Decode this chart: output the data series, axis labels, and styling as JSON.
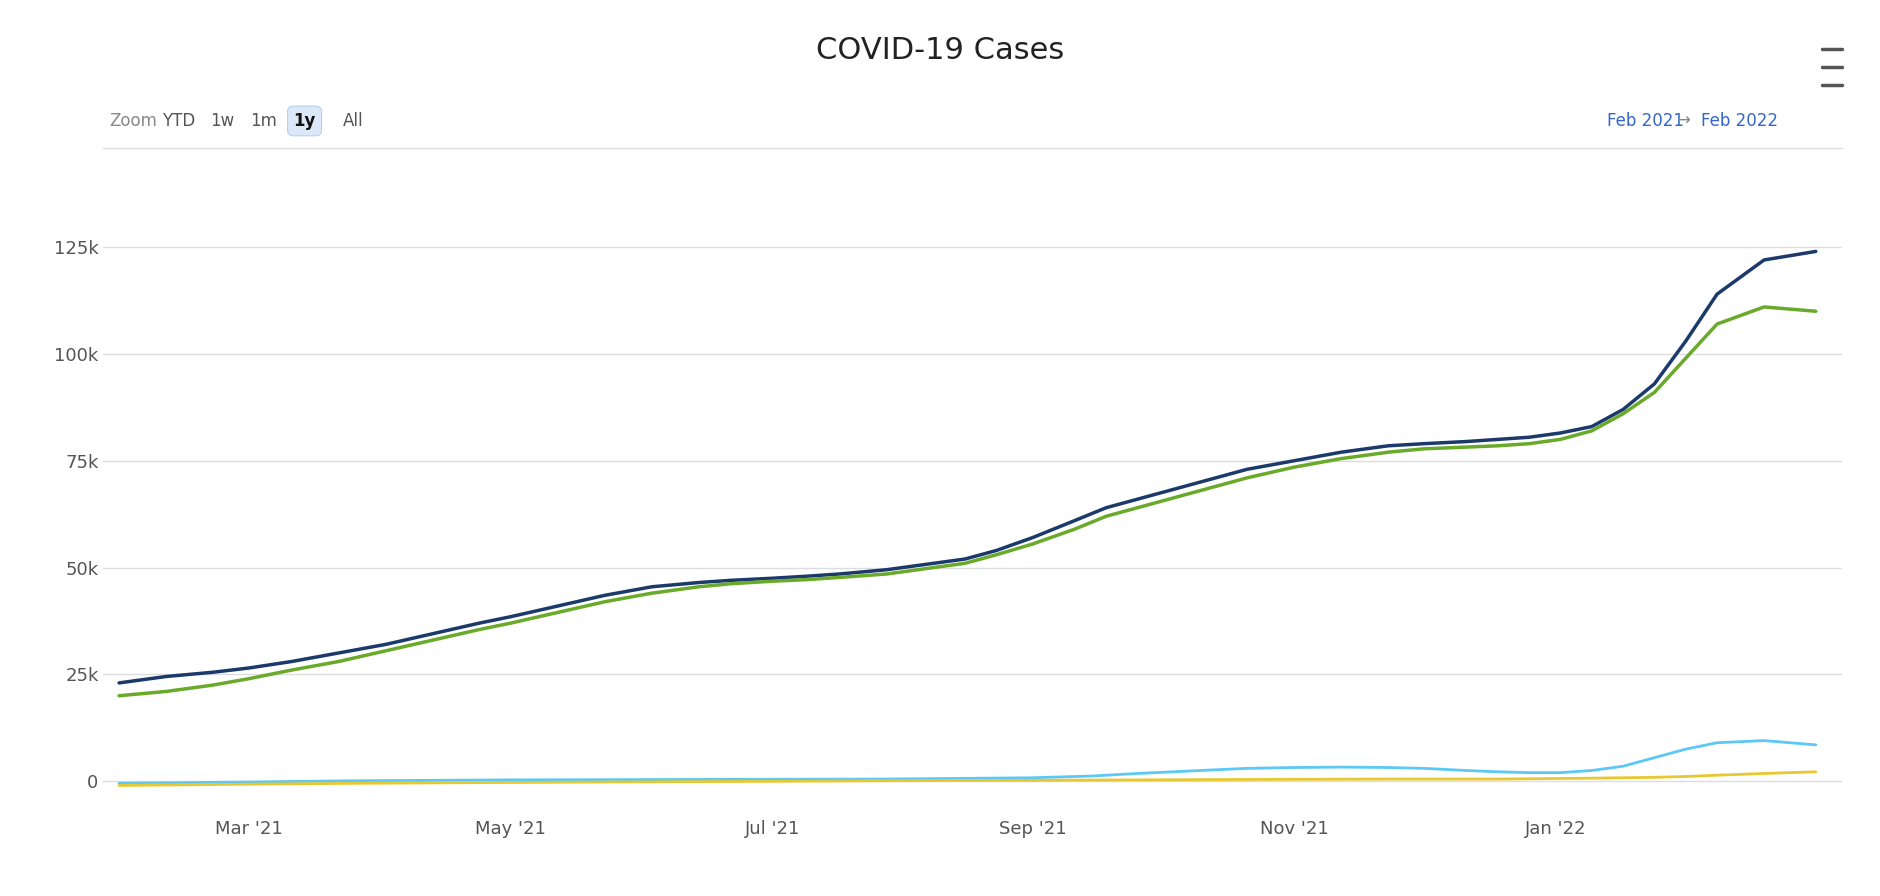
{
  "title": "COVID-19 Cases",
  "background_color": "#ffffff",
  "yticks": [
    0,
    25000,
    50000,
    75000,
    100000,
    125000
  ],
  "ytick_labels": [
    "0",
    "25k",
    "50k",
    "75k",
    "100k",
    "125k"
  ],
  "xtick_labels": [
    "Mar '21",
    "May '21",
    "Jul '21",
    "Sep '21",
    "Nov '21",
    "Jan '22"
  ],
  "xtick_positions": [
    0.083,
    0.25,
    0.417,
    0.583,
    0.75,
    0.917
  ],
  "zoom_labels": [
    "YTD",
    "1w",
    "1m",
    "1y",
    "All"
  ],
  "zoom_active": "1y",
  "grid_color": "#dddddd",
  "title_fontsize": 22,
  "series": [
    {
      "name": "dark_blue",
      "color": "#1b3a6b",
      "linewidth": 2.5,
      "points": [
        [
          0.0,
          23000
        ],
        [
          0.03,
          24500
        ],
        [
          0.06,
          25500
        ],
        [
          0.083,
          26500
        ],
        [
          0.11,
          28000
        ],
        [
          0.14,
          30000
        ],
        [
          0.17,
          32000
        ],
        [
          0.2,
          34500
        ],
        [
          0.23,
          37000
        ],
        [
          0.25,
          38500
        ],
        [
          0.28,
          41000
        ],
        [
          0.31,
          43500
        ],
        [
          0.34,
          45500
        ],
        [
          0.37,
          46500
        ],
        [
          0.39,
          47000
        ],
        [
          0.417,
          47500
        ],
        [
          0.44,
          48000
        ],
        [
          0.46,
          48500
        ],
        [
          0.49,
          49500
        ],
        [
          0.51,
          50500
        ],
        [
          0.54,
          52000
        ],
        [
          0.56,
          54000
        ],
        [
          0.583,
          57000
        ],
        [
          0.61,
          61000
        ],
        [
          0.63,
          64000
        ],
        [
          0.66,
          67000
        ],
        [
          0.69,
          70000
        ],
        [
          0.72,
          73000
        ],
        [
          0.75,
          75000
        ],
        [
          0.78,
          77000
        ],
        [
          0.81,
          78500
        ],
        [
          0.833,
          79000
        ],
        [
          0.86,
          79500
        ],
        [
          0.88,
          80000
        ],
        [
          0.9,
          80500
        ],
        [
          0.92,
          81500
        ],
        [
          0.94,
          83000
        ],
        [
          0.96,
          87000
        ],
        [
          0.98,
          93000
        ],
        [
          1.0,
          103000
        ],
        [
          1.02,
          114000
        ],
        [
          1.05,
          122000
        ],
        [
          1.083,
          124000
        ]
      ]
    },
    {
      "name": "green",
      "color": "#6aaa2a",
      "linewidth": 2.5,
      "points": [
        [
          0.0,
          20000
        ],
        [
          0.03,
          21000
        ],
        [
          0.06,
          22500
        ],
        [
          0.083,
          24000
        ],
        [
          0.11,
          26000
        ],
        [
          0.14,
          28000
        ],
        [
          0.17,
          30500
        ],
        [
          0.2,
          33000
        ],
        [
          0.23,
          35500
        ],
        [
          0.25,
          37000
        ],
        [
          0.28,
          39500
        ],
        [
          0.31,
          42000
        ],
        [
          0.34,
          44000
        ],
        [
          0.37,
          45500
        ],
        [
          0.39,
          46200
        ],
        [
          0.417,
          46800
        ],
        [
          0.44,
          47200
        ],
        [
          0.46,
          47700
        ],
        [
          0.49,
          48500
        ],
        [
          0.51,
          49500
        ],
        [
          0.54,
          51000
        ],
        [
          0.56,
          53000
        ],
        [
          0.583,
          55500
        ],
        [
          0.61,
          59000
        ],
        [
          0.63,
          62000
        ],
        [
          0.66,
          65000
        ],
        [
          0.69,
          68000
        ],
        [
          0.72,
          71000
        ],
        [
          0.75,
          73500
        ],
        [
          0.78,
          75500
        ],
        [
          0.81,
          77000
        ],
        [
          0.833,
          77800
        ],
        [
          0.86,
          78200
        ],
        [
          0.88,
          78500
        ],
        [
          0.9,
          79000
        ],
        [
          0.92,
          80000
        ],
        [
          0.94,
          82000
        ],
        [
          0.96,
          86000
        ],
        [
          0.98,
          91000
        ],
        [
          1.0,
          99000
        ],
        [
          1.02,
          107000
        ],
        [
          1.05,
          111000
        ],
        [
          1.083,
          110000
        ]
      ]
    },
    {
      "name": "light_blue",
      "color": "#5bc8f5",
      "linewidth": 2.0,
      "points": [
        [
          0.0,
          -500
        ],
        [
          0.083,
          -200
        ],
        [
          0.15,
          100
        ],
        [
          0.25,
          300
        ],
        [
          0.37,
          400
        ],
        [
          0.49,
          500
        ],
        [
          0.583,
          800
        ],
        [
          0.62,
          1200
        ],
        [
          0.65,
          1800
        ],
        [
          0.69,
          2500
        ],
        [
          0.72,
          3000
        ],
        [
          0.75,
          3200
        ],
        [
          0.78,
          3300
        ],
        [
          0.81,
          3200
        ],
        [
          0.833,
          3000
        ],
        [
          0.86,
          2500
        ],
        [
          0.88,
          2200
        ],
        [
          0.9,
          2000
        ],
        [
          0.92,
          2000
        ],
        [
          0.94,
          2500
        ],
        [
          0.96,
          3500
        ],
        [
          0.98,
          5500
        ],
        [
          1.0,
          7500
        ],
        [
          1.02,
          9000
        ],
        [
          1.05,
          9500
        ],
        [
          1.083,
          8500
        ]
      ]
    },
    {
      "name": "yellow",
      "color": "#e8c830",
      "linewidth": 2.0,
      "points": [
        [
          0.0,
          -1000
        ],
        [
          0.083,
          -700
        ],
        [
          0.15,
          -500
        ],
        [
          0.25,
          -300
        ],
        [
          0.37,
          -100
        ],
        [
          0.49,
          100
        ],
        [
          0.583,
          200
        ],
        [
          0.65,
          300
        ],
        [
          0.72,
          400
        ],
        [
          0.81,
          500
        ],
        [
          0.88,
          500
        ],
        [
          0.94,
          700
        ],
        [
          0.98,
          900
        ],
        [
          1.0,
          1100
        ],
        [
          1.02,
          1400
        ],
        [
          1.05,
          1800
        ],
        [
          1.083,
          2200
        ]
      ]
    }
  ]
}
